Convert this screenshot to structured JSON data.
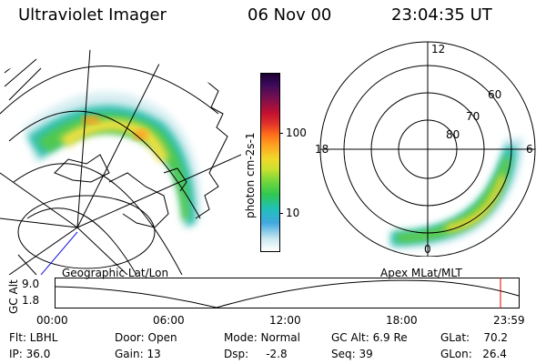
{
  "header": {
    "instrument": "Ultraviolet Imager",
    "date": "06 Nov 00",
    "time": "23:04:35 UT"
  },
  "colorbar": {
    "unit_label": "photon cm-2s-1",
    "ticks": [
      "100",
      "10"
    ],
    "colors": [
      "#1a0030",
      "#3a0a5a",
      "#7a1050",
      "#c01030",
      "#e0302a",
      "#ff6a1a",
      "#ffa020",
      "#f0d82a",
      "#c8e030",
      "#7ad83a",
      "#30c850",
      "#20c0b8",
      "#40a8e0",
      "#c8e8f0",
      "#ffffff"
    ]
  },
  "polar_plot": {
    "mlt_labels": {
      "top": "12",
      "left": "18",
      "right": "6",
      "bottom": "0"
    },
    "lat_labels": [
      "60",
      "70",
      "80"
    ]
  },
  "timeline": {
    "left_label": "Geographic Lat/Lon",
    "right_label": "Apex MLat/MLT",
    "axis_title": "GC Alt",
    "y_ticks": [
      "9.0",
      "1.8"
    ],
    "x_ticks": [
      "00:00",
      "06:00",
      "12:00",
      "18:00",
      "23:59"
    ],
    "marker_color": "#dd0000"
  },
  "info": {
    "filter": "Flt: LBHL",
    "ip": "IP: 36.0",
    "door": "Door: Open",
    "gain": "Gain: 13",
    "mode": "Mode: Normal",
    "dsp": "Dsp:     -2.8",
    "gc_alt": "GC Alt: 6.9 Re",
    "seq": "Seq: 39",
    "glat": "GLat:    70.2",
    "glon": "GLon:   26.4"
  }
}
